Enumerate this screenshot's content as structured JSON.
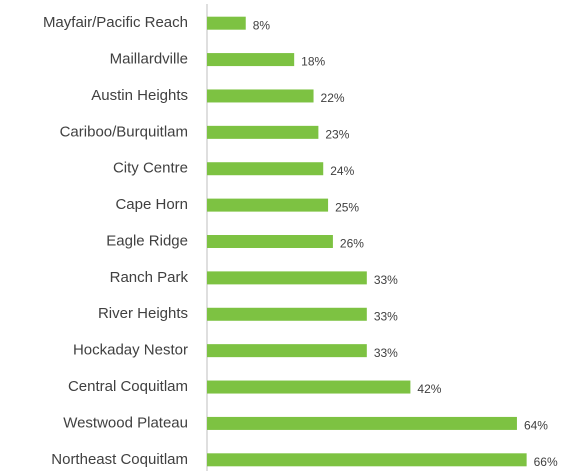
{
  "chart_data": {
    "type": "barh",
    "categories": [
      "Mayfair/Pacific Reach",
      "Maillardville",
      "Austin Heights",
      "Cariboo/Burquitlam",
      "City Centre",
      "Cape Horn",
      "Eagle Ridge",
      "Ranch Park",
      "River Heights",
      "Hockaday Nestor",
      "Central Coquitlam",
      "Westwood Plateau",
      "Northeast Coquitlam"
    ],
    "values": [
      8,
      18,
      22,
      23,
      24,
      25,
      26,
      33,
      33,
      33,
      42,
      64,
      66
    ],
    "value_labels": [
      "8%",
      "18%",
      "22%",
      "23%",
      "24%",
      "25%",
      "26%",
      "33%",
      "33%",
      "33%",
      "42%",
      "64%",
      "66%"
    ],
    "color": "#7dc242",
    "xlim": [
      0,
      70
    ]
  }
}
